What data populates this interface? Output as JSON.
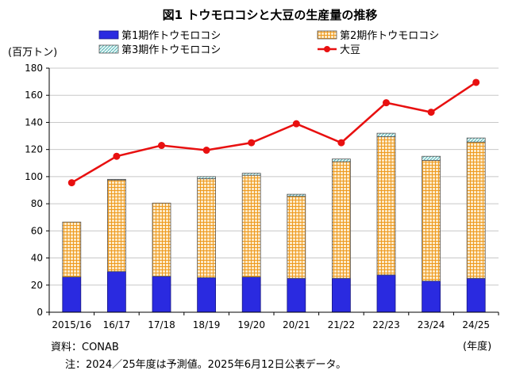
{
  "chart_data": {
    "type": "bar",
    "title": "図1 トウモロコシと大豆の生産量の推移",
    "ylabel": "(百万トン)",
    "xlabel": "(年度)",
    "ylim": [
      0,
      180
    ],
    "yticks": [
      0,
      20,
      40,
      60,
      80,
      100,
      120,
      140,
      160,
      180
    ],
    "grid": true,
    "categories": [
      "2015/16",
      "16/17",
      "17/18",
      "18/19",
      "19/20",
      "20/21",
      "21/22",
      "22/23",
      "23/24",
      "24/25"
    ],
    "series": [
      {
        "name": "第1期作トウモロコシ",
        "kind": "stacked-bar",
        "color": "#2a2ae0",
        "values": [
          26,
          30,
          26.5,
          25.5,
          26,
          25,
          25,
          27.5,
          23,
          25
        ]
      },
      {
        "name": "第2期作トウモロコシ",
        "kind": "stacked-bar",
        "color": "#f5a623",
        "values": [
          40.5,
          67.5,
          54,
          73,
          75,
          60.5,
          86,
          102,
          89,
          100.5
        ]
      },
      {
        "name": "第3期作トウモロコシ",
        "kind": "stacked-bar",
        "color": "#a8e0e0",
        "values": [
          0,
          0.5,
          0,
          1.5,
          1.5,
          1.5,
          2,
          2.5,
          3,
          3
        ]
      },
      {
        "name": "大豆",
        "kind": "line",
        "color": "#e81010",
        "values": [
          95.5,
          115,
          123,
          119.5,
          125,
          139,
          125,
          154.5,
          147.5,
          169.5
        ]
      }
    ]
  },
  "notes": {
    "source": "資料：CONAB",
    "footnote": "注：2024／25年度は予測値。2025年6月12日公表データ。"
  }
}
